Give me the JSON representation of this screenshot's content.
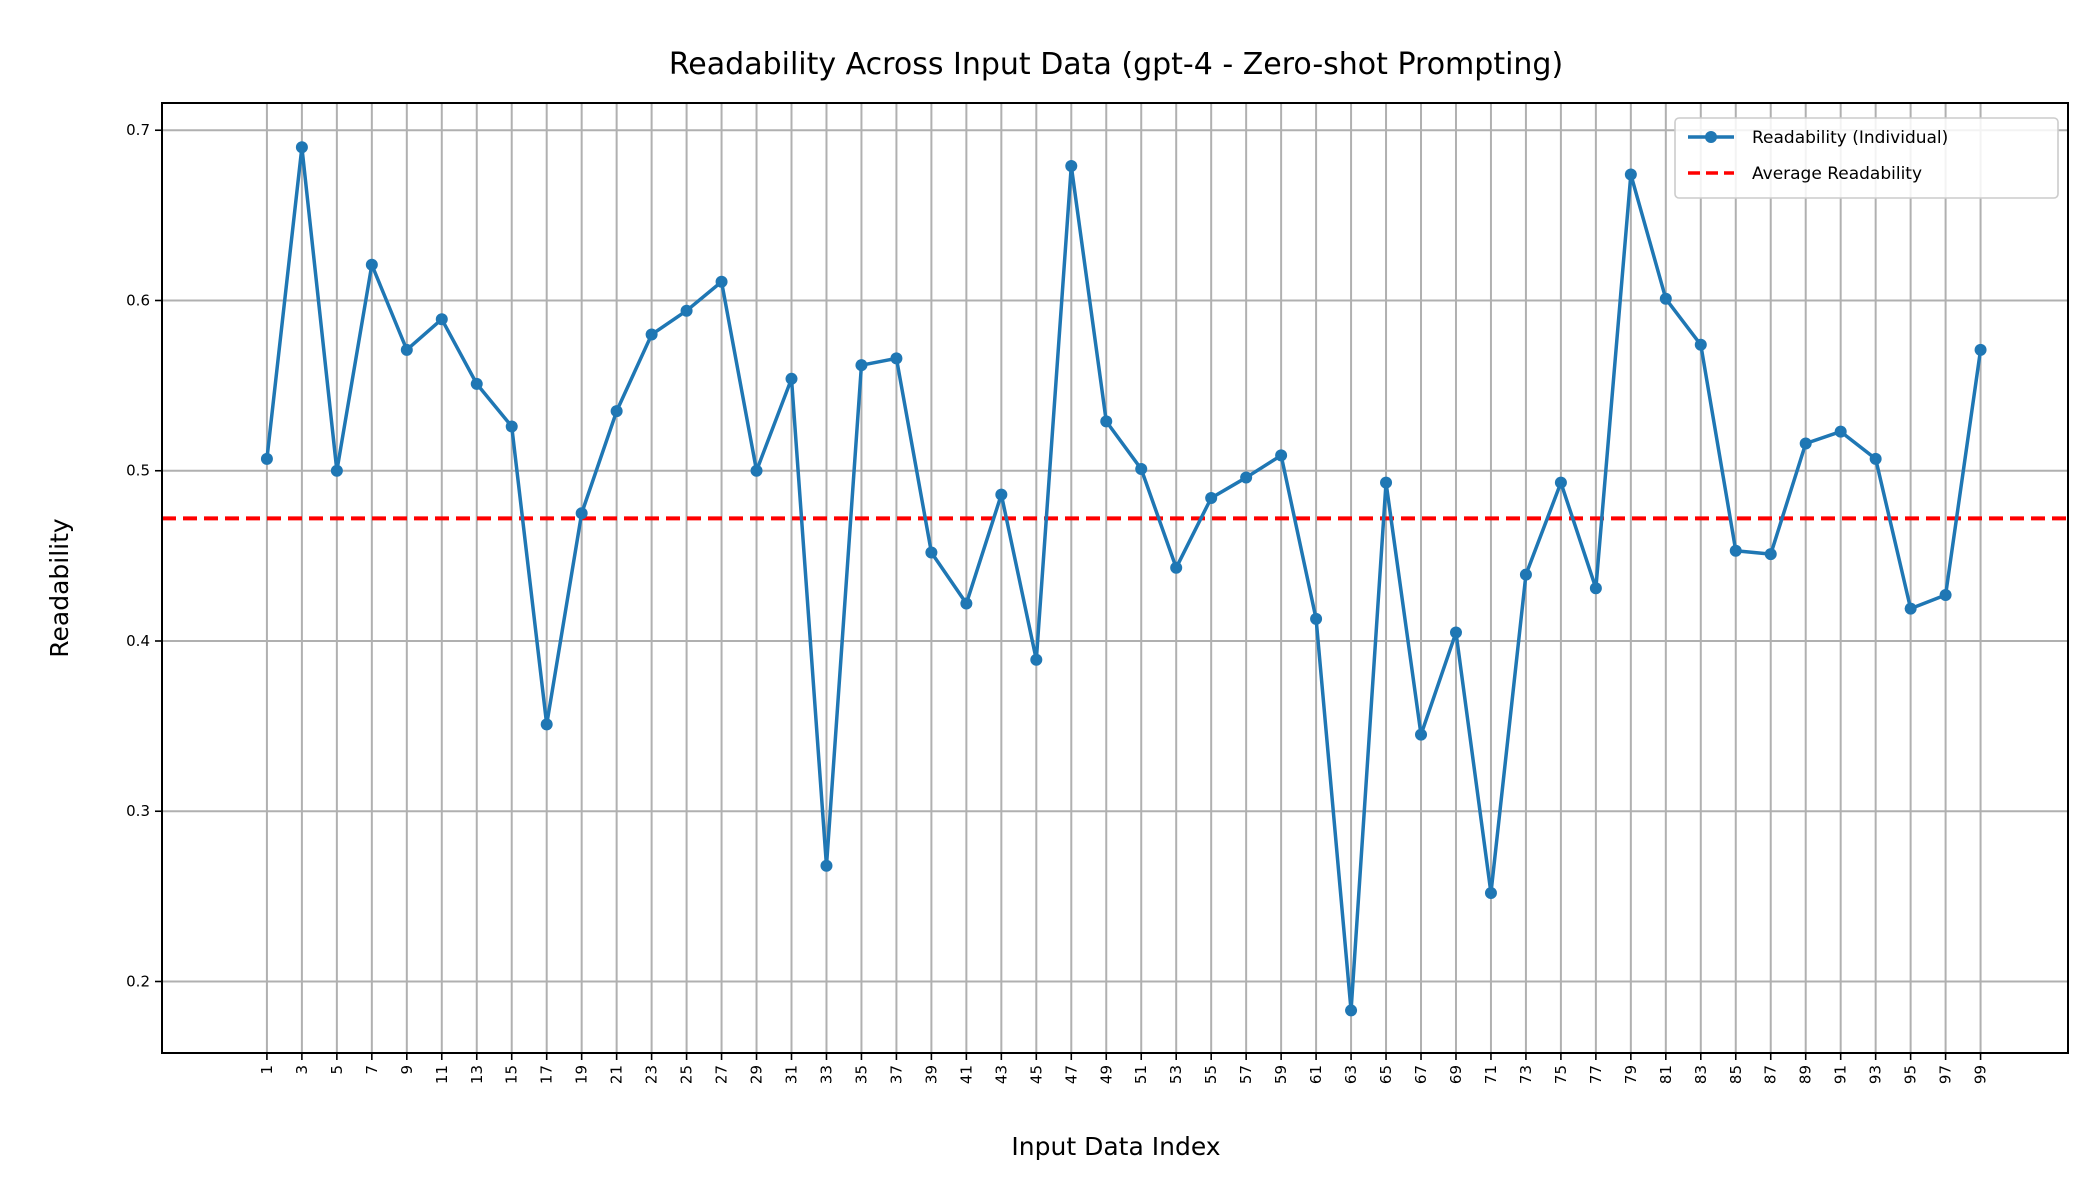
{
  "chart_data": {
    "type": "line",
    "title": "Readability Across Input Data (gpt-4 - Zero-shot Prompting)",
    "xlabel": "Input Data Index",
    "ylabel": "Readability",
    "x": [
      1,
      3,
      5,
      7,
      9,
      11,
      13,
      15,
      17,
      19,
      21,
      23,
      25,
      27,
      29,
      31,
      33,
      35,
      37,
      39,
      41,
      43,
      45,
      47,
      49,
      51,
      53,
      55,
      57,
      59,
      61,
      63,
      65,
      67,
      69,
      71,
      73,
      75,
      77,
      79,
      81,
      83,
      85,
      87,
      89,
      91,
      93,
      95,
      97,
      99
    ],
    "xticks": [
      "1",
      "3",
      "5",
      "7",
      "9",
      "11",
      "13",
      "15",
      "17",
      "19",
      "21",
      "23",
      "25",
      "27",
      "29",
      "31",
      "33",
      "35",
      "37",
      "39",
      "41",
      "43",
      "45",
      "47",
      "49",
      "51",
      "53",
      "55",
      "57",
      "59",
      "61",
      "63",
      "65",
      "67",
      "69",
      "71",
      "73",
      "75",
      "77",
      "79",
      "81",
      "83",
      "85",
      "87",
      "89",
      "91",
      "93",
      "95",
      "97",
      "99"
    ],
    "yticks": [
      "0.2",
      "0.3",
      "0.4",
      "0.5",
      "0.6",
      "0.7"
    ],
    "ytick_values": [
      0.2,
      0.3,
      0.4,
      0.5,
      0.6,
      0.7
    ],
    "xlim": [
      -5,
      104
    ],
    "ylim": [
      0.158,
      0.716
    ],
    "grid": true,
    "legend_position": "top-right",
    "series": [
      {
        "name": "Readability (Individual)",
        "color": "#1f77b4",
        "style": "line-marker",
        "values": [
          0.507,
          0.69,
          0.5,
          0.621,
          0.571,
          0.589,
          0.551,
          0.526,
          0.351,
          0.475,
          0.535,
          0.58,
          0.594,
          0.611,
          0.5,
          0.554,
          0.268,
          0.562,
          0.566,
          0.452,
          0.422,
          0.486,
          0.389,
          0.679,
          0.529,
          0.501,
          0.443,
          0.484,
          0.496,
          0.509,
          0.413,
          0.183,
          0.493,
          0.345,
          0.405,
          0.252,
          0.439,
          0.493,
          0.431,
          0.674,
          0.601,
          0.574,
          0.453,
          0.451,
          0.516,
          0.523,
          0.507,
          0.419,
          0.427,
          0.571
        ]
      }
    ],
    "average": {
      "name": "Average Readability",
      "color": "#ff0000",
      "style": "dashed",
      "value": 0.472
    }
  }
}
